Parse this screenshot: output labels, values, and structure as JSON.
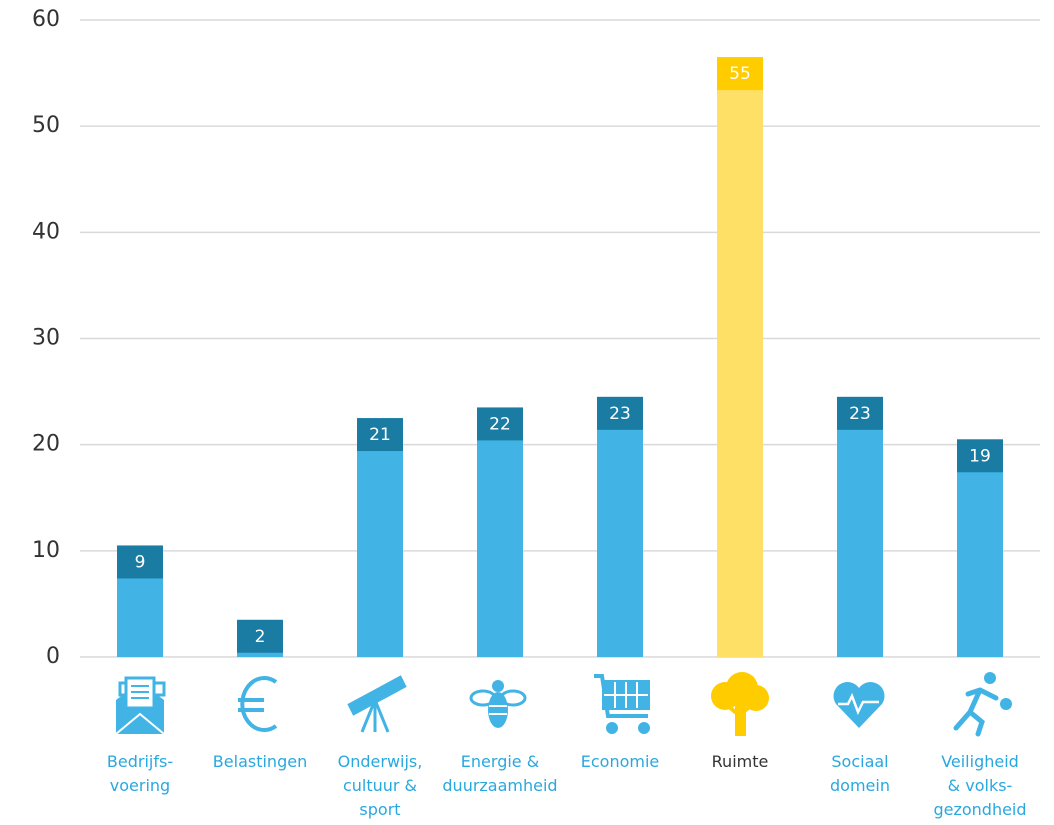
{
  "chart_data": {
    "type": "bar",
    "categories": [
      "Bedrijfs-\nvoering",
      "Belastingen",
      "Onderwijs,\ncultuur &\nsport",
      "Energie &\nduurzaamheid",
      "Economie",
      "Ruimte",
      "Sociaal\ndomein",
      "Veiligheid\n& volks-\ngezondheid"
    ],
    "values": [
      9,
      2,
      21,
      22,
      23,
      55,
      23,
      19
    ],
    "colors": [
      "#41b4e5",
      "#41b4e5",
      "#41b4e5",
      "#41b4e5",
      "#41b4e5",
      "#ffe066",
      "#41b4e5",
      "#41b4e5"
    ],
    "label_colors": [
      "#1a7ca3",
      "#1a7ca3",
      "#1a7ca3",
      "#1a7ca3",
      "#1a7ca3",
      "#ffcc00",
      "#1a7ca3",
      "#1a7ca3"
    ],
    "category_colors": [
      "#29a8e0",
      "#29a8e0",
      "#29a8e0",
      "#29a8e0",
      "#29a8e0",
      "#333333",
      "#29a8e0",
      "#29a8e0"
    ],
    "ylim": [
      0,
      60
    ],
    "yticks": [
      0,
      10,
      20,
      30,
      40,
      50,
      60
    ],
    "grid": true
  }
}
